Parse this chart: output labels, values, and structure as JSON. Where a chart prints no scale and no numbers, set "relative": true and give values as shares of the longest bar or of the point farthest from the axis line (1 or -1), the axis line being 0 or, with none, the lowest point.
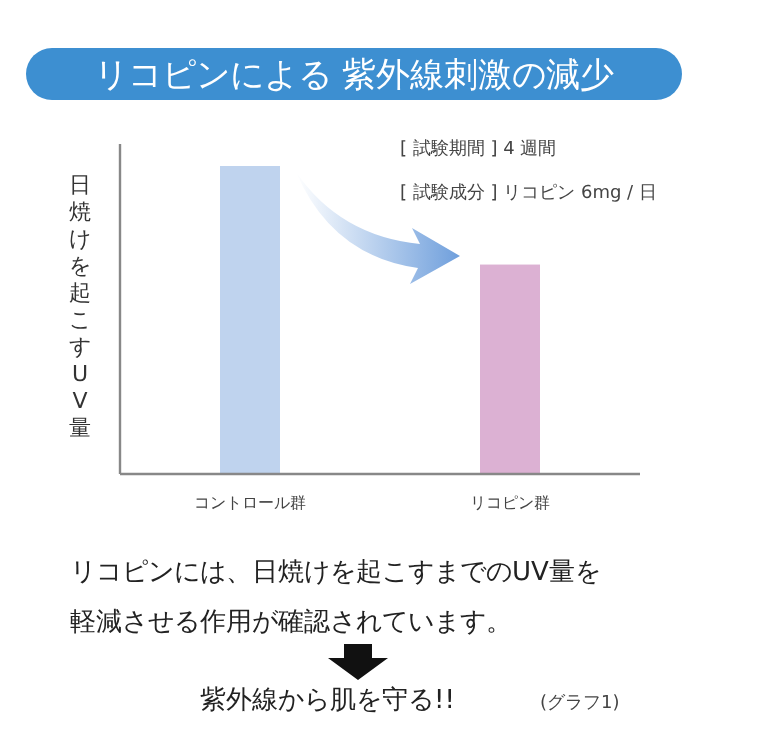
{
  "chart_data": {
    "type": "bar",
    "title": "リコピンによる 紫外線刺激の減少",
    "ylabel": "日焼けを起こすUV量",
    "categories": [
      "コントロール群",
      "リコピン群"
    ],
    "values": [
      1,
      0.68
    ],
    "colors": [
      "#bfd3ee",
      "#dcb1d3"
    ],
    "relative": true,
    "annotations": [
      "[ 試験期間 ] 4 週間",
      "[ 試験成分 ] リコピン 6mg / 日",
      "リコピンには、日焼けを起こすまでのUV量を",
      "軽減させる作用が確認されています。",
      "紫外線から肌を守る!!",
      "(グラフ1)"
    ]
  }
}
